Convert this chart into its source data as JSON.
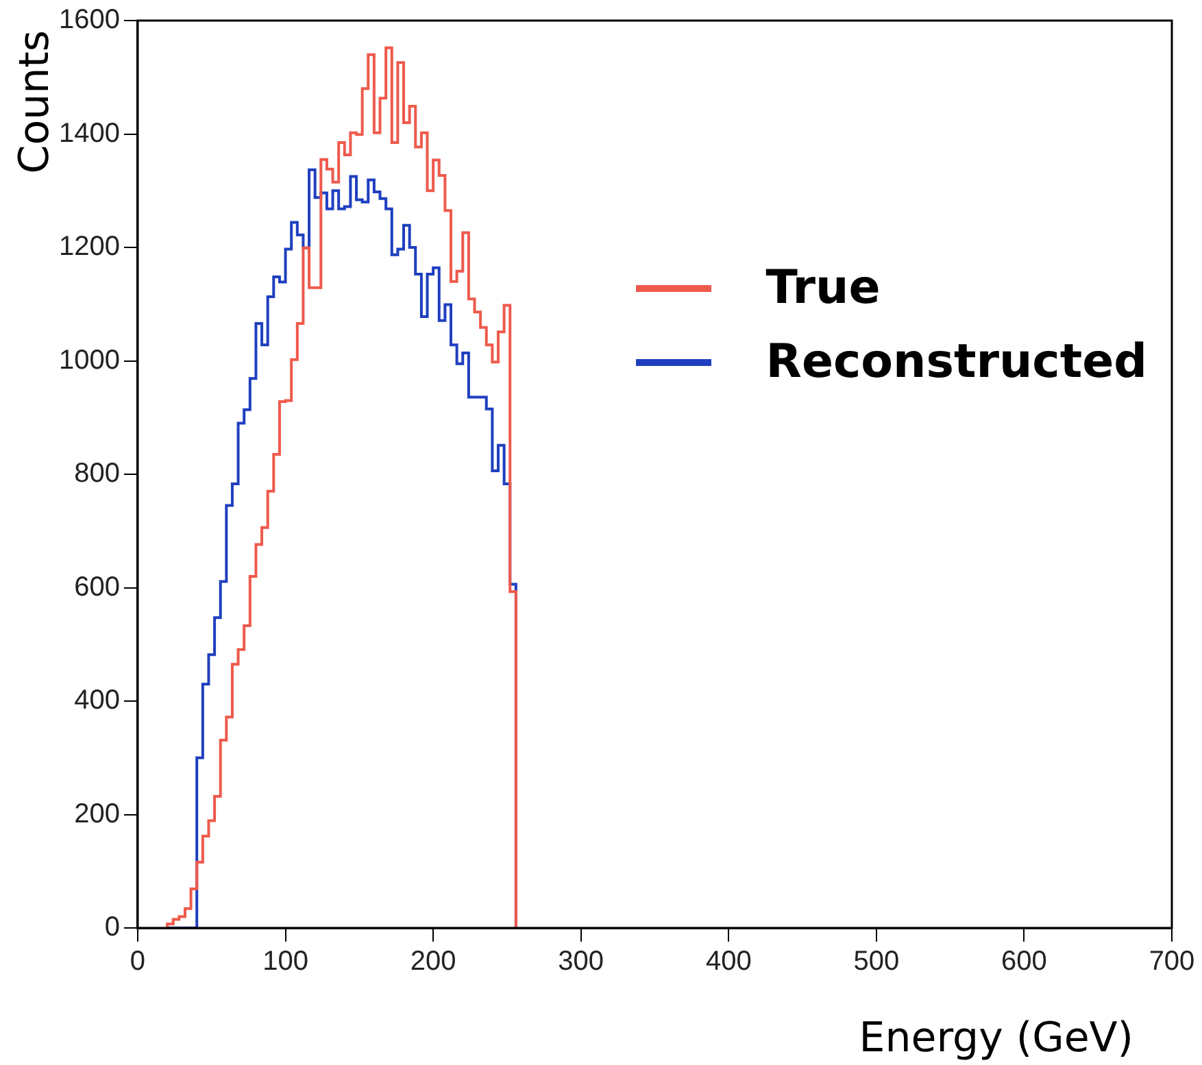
{
  "chart_data": {
    "type": "histogram",
    "xlabel": "Energy (GeV)",
    "ylabel": "Counts",
    "bins": [
      20,
      24,
      28,
      32,
      36,
      40,
      44,
      48,
      52,
      56,
      60,
      64,
      68,
      72,
      76,
      80,
      84,
      88,
      92,
      96,
      100,
      104,
      108,
      112,
      116,
      120,
      124,
      128,
      132,
      136,
      140,
      144,
      148,
      152,
      156,
      160,
      164,
      168,
      172,
      176,
      180,
      184,
      188,
      192,
      196,
      200,
      204,
      208,
      212,
      216,
      220,
      224,
      228,
      232,
      236,
      240,
      244,
      248,
      252,
      256
    ],
    "series": [
      {
        "name": "True",
        "color": "#ee5a4c",
        "values": [
          7,
          15,
          20,
          34,
          69,
          116,
          162,
          189,
          232,
          331,
          372,
          465,
          491,
          533,
          620,
          676,
          706,
          770,
          835,
          928,
          930,
          1002,
          1066,
          1199,
          1129,
          1129,
          1355,
          1338,
          1315,
          1385,
          1363,
          1402,
          1399,
          1480,
          1540,
          1402,
          1463,
          1552,
          1385,
          1526,
          1420,
          1449,
          1377,
          1402,
          1300,
          1354,
          1327,
          1265,
          1140,
          1158,
          1226,
          1109,
          1086,
          1059,
          1028,
          998,
          1051,
          1098,
          593
        ]
      },
      {
        "name": "Reconstructed",
        "color": "#1f3fbf",
        "values": [
          0,
          0,
          0,
          0,
          0,
          300,
          430,
          482,
          547,
          611,
          745,
          783,
          890,
          914,
          969,
          1066,
          1028,
          1113,
          1148,
          1139,
          1197,
          1244,
          1222,
          1199,
          1337,
          1288,
          1296,
          1268,
          1300,
          1268,
          1272,
          1325,
          1284,
          1280,
          1319,
          1298,
          1286,
          1268,
          1187,
          1197,
          1239,
          1200,
          1153,
          1078,
          1153,
          1164,
          1071,
          1099,
          1028,
          995,
          1014,
          936,
          936,
          936,
          915,
          806,
          851,
          783,
          606
        ]
      }
    ],
    "xlim": [
      0,
      700
    ],
    "xticks": [
      0,
      100,
      200,
      300,
      400,
      500,
      600,
      700
    ],
    "ylim": [
      0,
      1600
    ],
    "yticks": [
      0,
      200,
      400,
      600,
      800,
      1000,
      1200,
      1400,
      1600
    ],
    "legend": "top right"
  }
}
